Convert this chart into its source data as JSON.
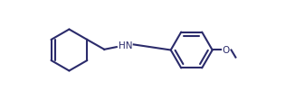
{
  "bg_color": "#ffffff",
  "line_color": "#2b2b6b",
  "line_width": 1.5,
  "bond_color": "#2b2b6b",
  "text_color": "#2b2b6b",
  "hn_label": "HN",
  "o_label": "O",
  "figsize": [
    3.26,
    1.11
  ],
  "dpi": 100
}
